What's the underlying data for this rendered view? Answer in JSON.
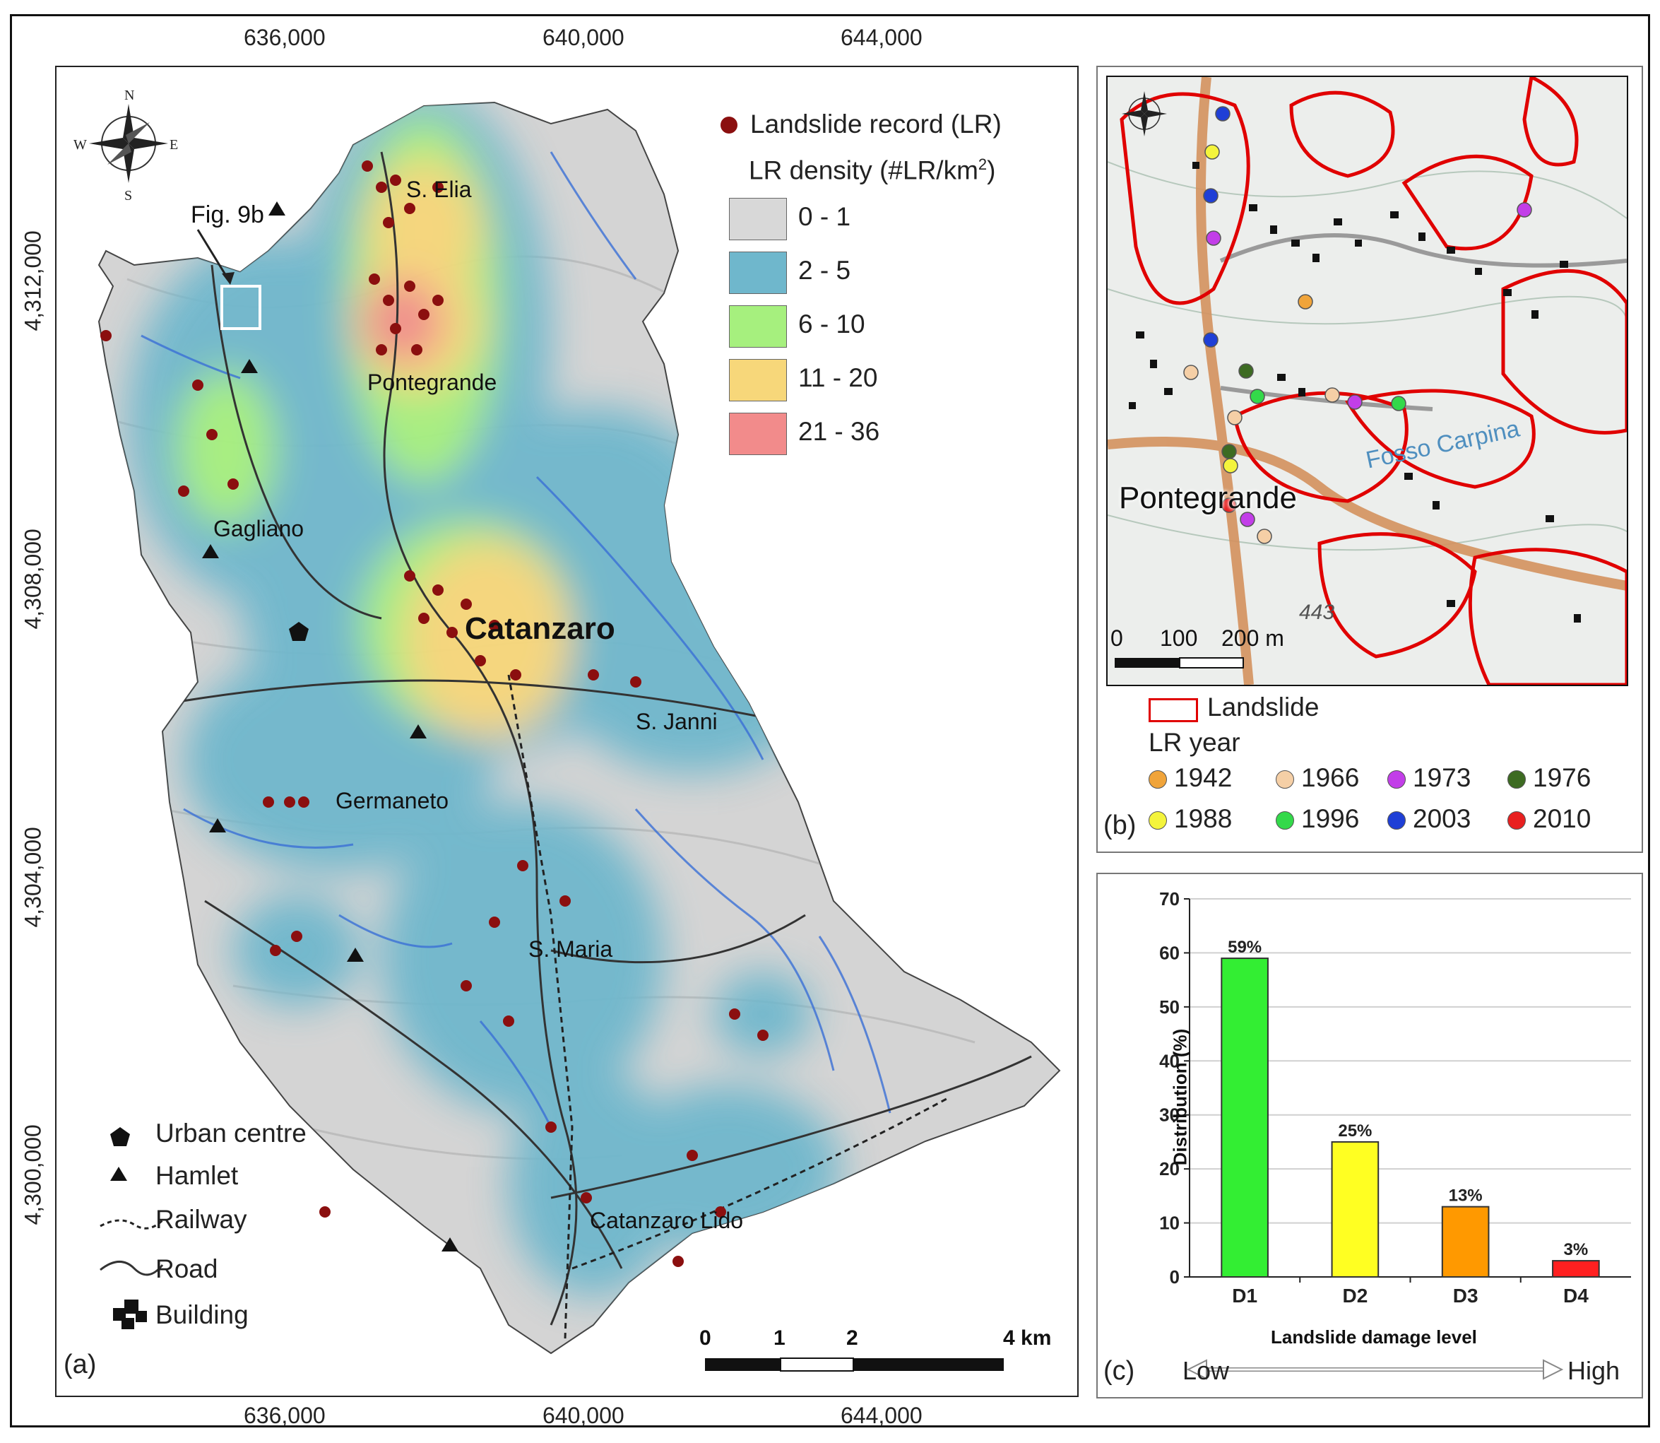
{
  "panel_a": {
    "letter": "(a)",
    "x_ticks": [
      "636,000",
      "640,000",
      "644,000"
    ],
    "y_ticks": [
      "4,312,000",
      "4,308,000",
      "4,304,000",
      "4,300,000"
    ],
    "callout": "Fig. 9b",
    "places": {
      "s_elia": "S. Elia",
      "pontegrande": "Pontegrande",
      "gagliano": "Gagliano",
      "catanzaro": "Catanzaro",
      "s_janni": "S. Janni",
      "germaneto": "Germaneto",
      "s_maria": "S. Maria",
      "catanzaro_lido": "Catanzaro Lido"
    },
    "legend": {
      "record": "Landslide record (LR)",
      "density_title": "LR density (#LR/km",
      "density_sup": "2",
      "density_close": ")",
      "classes": [
        {
          "label": "0 - 1",
          "color": "#d8d8d8"
        },
        {
          "label": "2 - 5",
          "color": "#6fb7cc"
        },
        {
          "label": "6 - 10",
          "color": "#a6f07e"
        },
        {
          "label": "11 - 20",
          "color": "#f7d77a"
        },
        {
          "label": "21 - 36",
          "color": "#f28b8b"
        }
      ]
    },
    "symbols": {
      "urban": "Urban centre",
      "hamlet": "Hamlet",
      "railway": "Railway",
      "road": "Road",
      "building": "Building"
    },
    "scale": {
      "labels": [
        "0",
        "1",
        "2",
        "4 km"
      ]
    }
  },
  "panel_b": {
    "letter": "(b)",
    "place": "Pontegrande",
    "river": "Fosso Carpina",
    "elevation": "443",
    "scale_labels": [
      "0",
      "100",
      "200 m"
    ],
    "legend": {
      "landslide": "Landslide",
      "year_title": "LR year",
      "years": [
        {
          "label": "1942",
          "color": "#f0a43a"
        },
        {
          "label": "1966",
          "color": "#f5cfa6"
        },
        {
          "label": "1973",
          "color": "#c23ee8"
        },
        {
          "label": "1976",
          "color": "#3d6b22"
        },
        {
          "label": "1988",
          "color": "#f4f43c"
        },
        {
          "label": "1996",
          "color": "#33d94a"
        },
        {
          "label": "2003",
          "color": "#1f3fd6"
        },
        {
          "label": "2010",
          "color": "#e82020"
        }
      ]
    }
  },
  "panel_c": {
    "letter": "(c)",
    "ylabel": "Distribution (%)",
    "xlabel": "Landslide damage level",
    "low": "Low",
    "high": "High"
  },
  "chart_data": {
    "type": "bar",
    "categories": [
      "D1",
      "D2",
      "D3",
      "D4"
    ],
    "values": [
      59,
      25,
      13,
      3
    ],
    "data_labels": [
      "59%",
      "25%",
      "13%",
      "3%"
    ],
    "colors": [
      "#33ee33",
      "#ffff22",
      "#ff9900",
      "#ff2020"
    ],
    "ylabel": "Distribution (%)",
    "xlabel": "Landslide damage level",
    "ylim": [
      0,
      70
    ],
    "yticks": [
      0,
      10,
      20,
      30,
      40,
      50,
      60,
      70
    ],
    "grid": true
  }
}
